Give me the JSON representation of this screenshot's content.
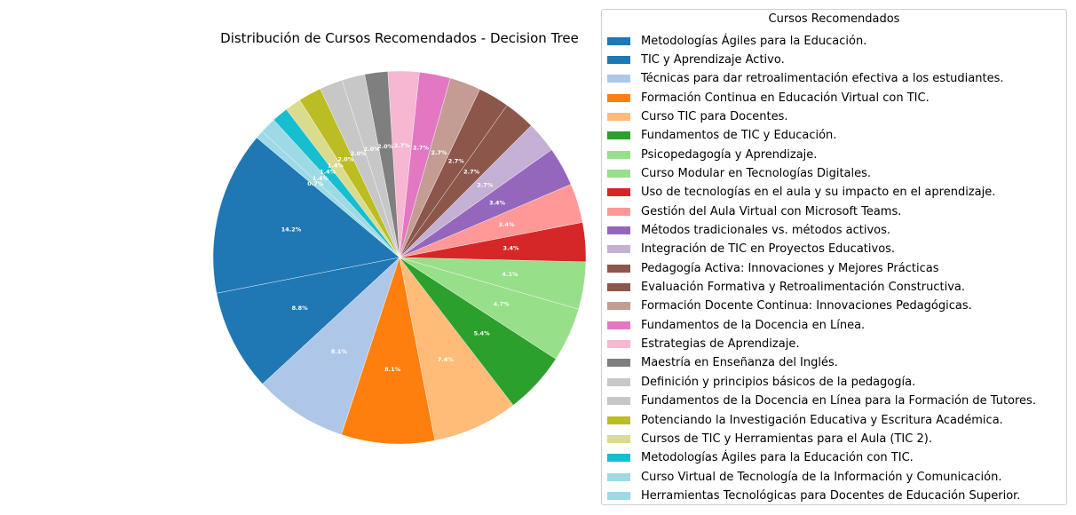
{
  "chart_data": {
    "type": "pie",
    "title": "Distribución de Cursos Recomendados - Decision Tree",
    "legend_title": "Cursos Recomendados",
    "legend_position": "right",
    "start_angle_deg": 140,
    "direction": "counterclockwise",
    "slices": [
      {
        "label": "Metodologías Ágiles para la Educación.",
        "value": 14.2,
        "pct_label": "14.2%",
        "color": "#1f77b4"
      },
      {
        "label": "TIC y Aprendizaje Activo.",
        "value": 8.8,
        "pct_label": "8.8%",
        "color": "#1f77b4"
      },
      {
        "label": "Técnicas para dar retroalimentación efectiva a los estudiantes.",
        "value": 8.1,
        "pct_label": "8.1%",
        "color": "#aec7e8"
      },
      {
        "label": "Formación Continua en Educación Virtual con TIC.",
        "value": 8.1,
        "pct_label": "8.1%",
        "color": "#ff7f0e"
      },
      {
        "label": "Curso TIC para Docentes.",
        "value": 7.4,
        "pct_label": "7.4%",
        "color": "#ffbb78"
      },
      {
        "label": "Fundamentos de TIC y Educación.",
        "value": 5.4,
        "pct_label": "5.4%",
        "color": "#2ca02c"
      },
      {
        "label": "Psicopedagogía y Aprendizaje.",
        "value": 4.7,
        "pct_label": "4.7%",
        "color": "#98df8a"
      },
      {
        "label": "Curso Modular en Tecnologías Digitales.",
        "value": 4.1,
        "pct_label": "4.1%",
        "color": "#98df8a"
      },
      {
        "label": "Uso de tecnologías en el aula y su impacto en el aprendizaje.",
        "value": 3.4,
        "pct_label": "3.4%",
        "color": "#d62728"
      },
      {
        "label": "Gestión del Aula Virtual con Microsoft Teams.",
        "value": 3.4,
        "pct_label": "3.4%",
        "color": "#ff9896"
      },
      {
        "label": "Métodos tradicionales vs. métodos activos.",
        "value": 3.4,
        "pct_label": "3.4%",
        "color": "#9467bd"
      },
      {
        "label": "Integración de TIC en Proyectos Educativos.",
        "value": 2.7,
        "pct_label": "2.7%",
        "color": "#c5b0d5"
      },
      {
        "label": "Pedagogía Activa: Innovaciones y Mejores Prácticas",
        "value": 2.7,
        "pct_label": "2.7%",
        "color": "#8c564b"
      },
      {
        "label": "Evaluación Formativa y Retroalimentación Constructiva.",
        "value": 2.7,
        "pct_label": "2.7%",
        "color": "#8c564b"
      },
      {
        "label": "Formación Docente Continua: Innovaciones Pedagógicas.",
        "value": 2.7,
        "pct_label": "2.7%",
        "color": "#c49c94"
      },
      {
        "label": "Fundamentos de la Docencia en Línea.",
        "value": 2.7,
        "pct_label": "2.7%",
        "color": "#e377c2"
      },
      {
        "label": "Estrategias de Aprendizaje.",
        "value": 2.7,
        "pct_label": "2.7%",
        "color": "#f7b6d2"
      },
      {
        "label": "Maestría en Enseñanza del Inglés.",
        "value": 2.0,
        "pct_label": "2.0%",
        "color": "#7f7f7f"
      },
      {
        "label": "Definición y principios básicos de la pedagogía.",
        "value": 2.0,
        "pct_label": "2.0%",
        "color": "#c7c7c7"
      },
      {
        "label": "Fundamentos de la Docencia en Línea para la Formación de Tutores.",
        "value": 2.0,
        "pct_label": "2.0%",
        "color": "#c7c7c7"
      },
      {
        "label": "Potenciando la Investigación Educativa y Escritura Académica.",
        "value": 2.0,
        "pct_label": "2.0%",
        "color": "#bcbd22"
      },
      {
        "label": "Cursos de TIC y Herramientas para el Aula (TIC 2).",
        "value": 1.4,
        "pct_label": "1.4%",
        "color": "#dbdb8d"
      },
      {
        "label": "Metodologías Ágiles para la Educación con TIC.",
        "value": 1.4,
        "pct_label": "1.4%",
        "color": "#17becf"
      },
      {
        "label": "Curso Virtual de Tecnología de la Información y Comunicación.",
        "value": 1.4,
        "pct_label": "1.4%",
        "color": "#9edae5"
      },
      {
        "label": "Herramientas Tecnológicas para Docentes de Educación Superior.",
        "value": 0.7,
        "pct_label": "0.7%",
        "color": "#9edae5"
      }
    ]
  }
}
